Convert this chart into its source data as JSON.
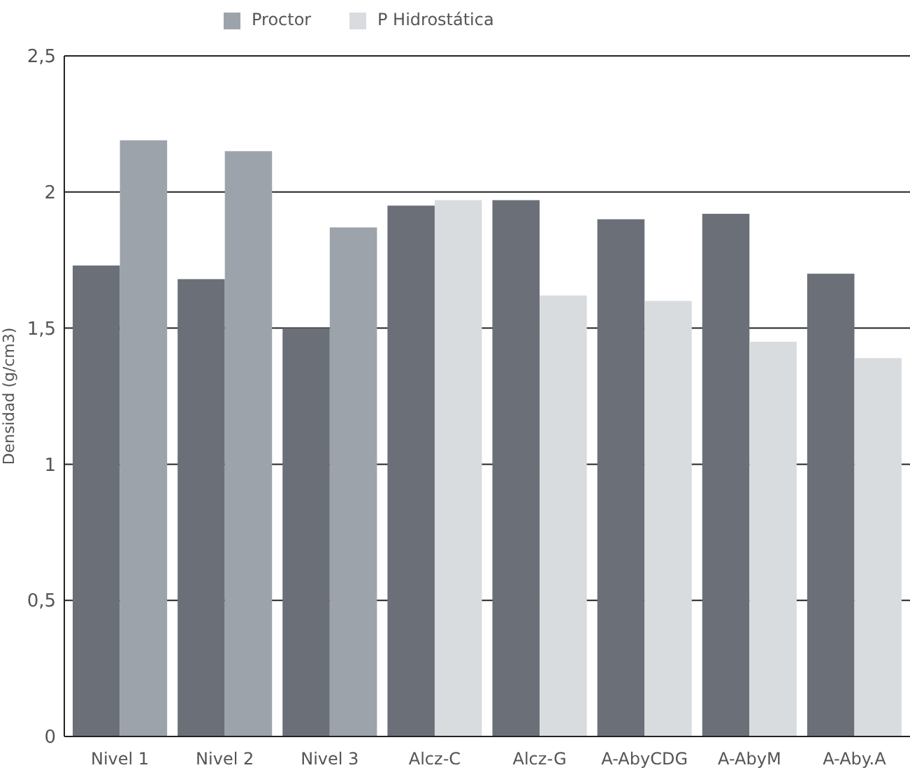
{
  "chart_data": {
    "type": "bar",
    "ylabel": "Densidad (g/cm3)",
    "categories": [
      "Nivel 1",
      "Nivel 2",
      "Nivel 3",
      "Alcz-C",
      "Alcz-G",
      "A-AbyCDG",
      "A-AbyM",
      "A-Aby.A"
    ],
    "series": [
      {
        "color": "#6b7078",
        "values": [
          1.73,
          1.68,
          1.5,
          1.95,
          1.97,
          1.9,
          1.92,
          1.7
        ]
      },
      {
        "name": "Proctor",
        "color": "#9ca3aa",
        "values": [
          2.19,
          2.15,
          1.87,
          null,
          null,
          null,
          null,
          null
        ]
      },
      {
        "name": "P Hidrostática",
        "color": "#d9dcdf",
        "values": [
          null,
          null,
          null,
          1.97,
          1.62,
          1.6,
          1.45,
          1.39
        ]
      }
    ],
    "ylim": [
      0,
      2.5
    ],
    "yticks": [
      0,
      {
        "value": 0.5,
        "label": "0,5"
      },
      1,
      {
        "value": 1.5,
        "label": "1,5"
      },
      2,
      {
        "value": 2.5,
        "label": "2,5"
      }
    ],
    "grid": "y",
    "legend": "top"
  }
}
